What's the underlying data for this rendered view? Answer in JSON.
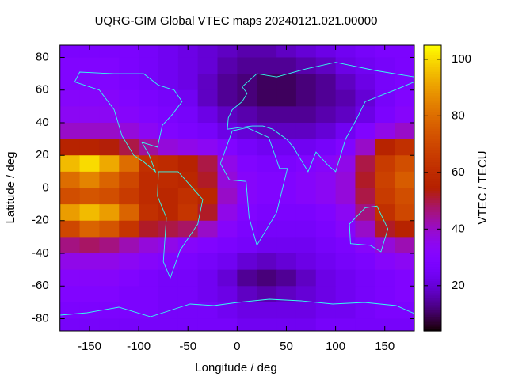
{
  "chart_data": {
    "type": "heatmap",
    "title": "UQRG-GIM Global VTEC maps 20240121.021.00000",
    "x_label": "Longitude / deg",
    "y_label": "Latitude / deg",
    "colorbar_label": "VTEC / TECU",
    "x": [
      -170,
      -150,
      -130,
      -110,
      -90,
      -70,
      -50,
      -30,
      -10,
      10,
      30,
      50,
      70,
      90,
      110,
      130,
      150,
      170
    ],
    "y": [
      85,
      75,
      65,
      55,
      45,
      35,
      25,
      15,
      5,
      -5,
      -15,
      -25,
      -35,
      -45,
      -55,
      -65,
      -75,
      -85
    ],
    "values": [
      [
        28,
        28,
        28,
        28,
        26,
        24,
        22,
        20,
        18,
        16,
        16,
        18,
        20,
        22,
        24,
        26,
        28,
        28
      ],
      [
        30,
        30,
        30,
        28,
        26,
        24,
        22,
        20,
        16,
        14,
        14,
        14,
        16,
        18,
        22,
        24,
        26,
        28
      ],
      [
        30,
        30,
        30,
        28,
        26,
        24,
        22,
        18,
        14,
        12,
        10,
        10,
        12,
        14,
        18,
        22,
        26,
        28
      ],
      [
        32,
        32,
        32,
        30,
        28,
        26,
        24,
        18,
        14,
        12,
        10,
        10,
        12,
        14,
        16,
        20,
        26,
        30
      ],
      [
        34,
        34,
        34,
        32,
        30,
        28,
        26,
        22,
        18,
        16,
        14,
        14,
        14,
        16,
        18,
        22,
        28,
        32
      ],
      [
        40,
        40,
        40,
        38,
        34,
        30,
        28,
        26,
        22,
        20,
        18,
        18,
        18,
        20,
        24,
        30,
        36,
        40
      ],
      [
        56,
        56,
        54,
        50,
        44,
        38,
        36,
        34,
        30,
        26,
        24,
        24,
        24,
        26,
        30,
        40,
        56,
        62
      ],
      [
        95,
        100,
        92,
        80,
        62,
        60,
        56,
        50,
        36,
        30,
        28,
        28,
        30,
        32,
        36,
        50,
        66,
        72
      ],
      [
        80,
        85,
        78,
        70,
        60,
        60,
        58,
        52,
        38,
        32,
        30,
        30,
        32,
        34,
        38,
        52,
        68,
        76
      ],
      [
        72,
        74,
        72,
        66,
        60,
        58,
        62,
        58,
        40,
        32,
        30,
        30,
        32,
        34,
        38,
        50,
        66,
        72
      ],
      [
        90,
        95,
        90,
        78,
        62,
        58,
        64,
        52,
        36,
        30,
        28,
        28,
        28,
        30,
        34,
        46,
        62,
        70
      ],
      [
        70,
        78,
        74,
        64,
        52,
        50,
        48,
        40,
        32,
        28,
        26,
        26,
        26,
        28,
        32,
        40,
        52,
        56
      ],
      [
        46,
        48,
        46,
        42,
        38,
        36,
        32,
        30,
        28,
        26,
        24,
        24,
        24,
        26,
        28,
        32,
        38,
        42
      ],
      [
        36,
        36,
        36,
        34,
        32,
        30,
        28,
        26,
        24,
        20,
        18,
        20,
        22,
        24,
        26,
        28,
        32,
        34
      ],
      [
        32,
        32,
        32,
        30,
        28,
        26,
        26,
        24,
        20,
        14,
        12,
        14,
        18,
        22,
        24,
        26,
        28,
        30
      ],
      [
        30,
        30,
        30,
        28,
        28,
        26,
        26,
        24,
        22,
        18,
        16,
        18,
        20,
        22,
        24,
        26,
        28,
        30
      ],
      [
        28,
        28,
        28,
        28,
        28,
        26,
        26,
        26,
        24,
        22,
        22,
        22,
        22,
        24,
        24,
        26,
        28,
        28
      ],
      [
        26,
        26,
        26,
        26,
        26,
        26,
        26,
        26,
        26,
        24,
        24,
        24,
        24,
        26,
        26,
        26,
        26,
        26
      ]
    ],
    "xlim": [
      -180,
      180
    ],
    "ylim": [
      -87.5,
      87.5
    ],
    "zlim": [
      4,
      105
    ],
    "xticks": [
      -150,
      -100,
      -50,
      0,
      50,
      100,
      150
    ],
    "yticks": [
      -80,
      -60,
      -40,
      -20,
      0,
      20,
      40,
      60,
      80
    ],
    "zticks": [
      20,
      40,
      60,
      80,
      100
    ]
  }
}
